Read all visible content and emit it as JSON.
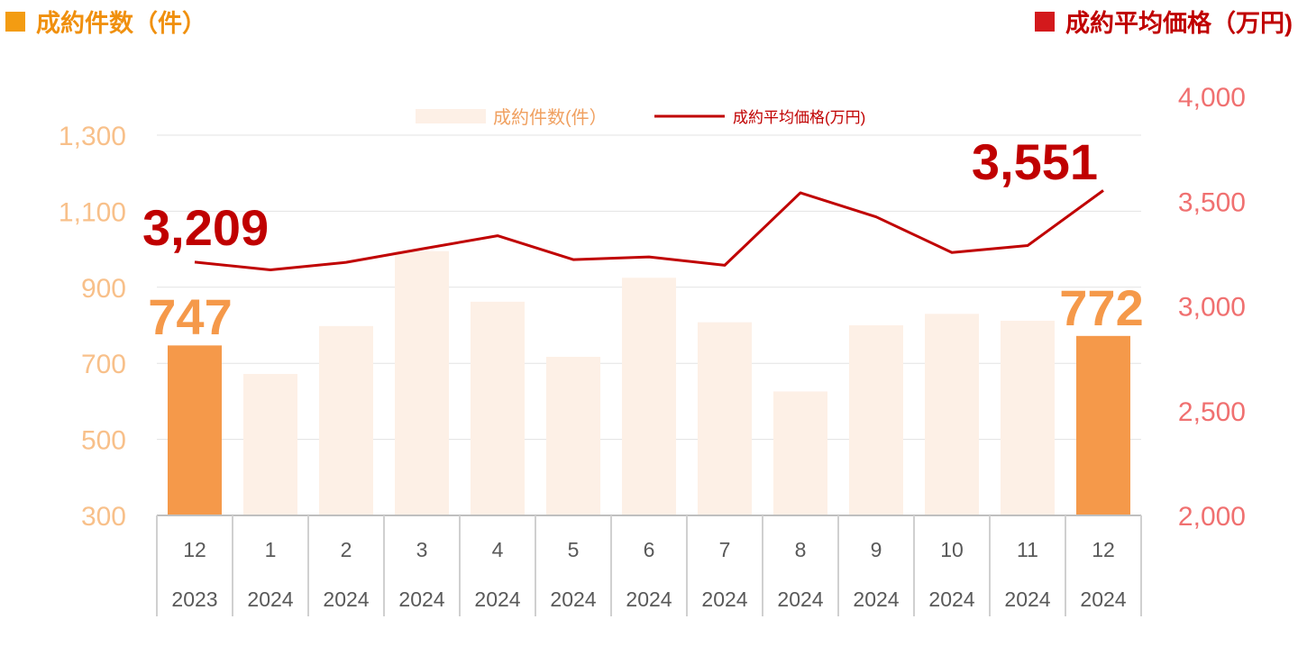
{
  "header": {
    "left_title": "成約件数（件）",
    "right_title": "成約平均価格（万円)"
  },
  "legend": {
    "bars_label": "成約件数(件）",
    "line_label": "成約平均価格(万円)"
  },
  "colors": {
    "bar_light": "#FDF0E6",
    "bar_highlight": "#F5994A",
    "line": "#C00000",
    "left_axis": "#F8C08A",
    "right_axis": "#F07070",
    "left_header": "#F0900E"
  },
  "chart_data": {
    "type": "bar",
    "title": "",
    "categories": [
      "12",
      "1",
      "2",
      "3",
      "4",
      "5",
      "6",
      "7",
      "8",
      "9",
      "10",
      "11",
      "12"
    ],
    "category_years": [
      "2023",
      "2024",
      "2024",
      "2024",
      "2024",
      "2024",
      "2024",
      "2024",
      "2024",
      "2024",
      "2024",
      "2024",
      "2024"
    ],
    "series": [
      {
        "name": "成約件数(件）",
        "type": "bar",
        "axis": "left",
        "values": [
          747,
          672,
          798,
          995,
          862,
          717,
          925,
          808,
          626,
          800,
          830,
          812,
          772
        ],
        "highlight_indices": [
          0,
          12
        ]
      },
      {
        "name": "成約平均価格(万円)",
        "type": "line",
        "axis": "right",
        "values": [
          3209,
          3172,
          3208,
          3272,
          3335,
          3221,
          3234,
          3194,
          3540,
          3425,
          3255,
          3288,
          3551
        ]
      }
    ],
    "y_left": {
      "min": 300,
      "max": 1300,
      "ticks": [
        "300",
        "500",
        "700",
        "900",
        "1,100",
        "1,300"
      ]
    },
    "y_right": {
      "min": 2000,
      "max": 4000,
      "ticks": [
        "2,000",
        "2,500",
        "3,000",
        "3,500",
        "4,000"
      ]
    },
    "data_labels": [
      {
        "series": 0,
        "index": 0,
        "text": "747"
      },
      {
        "series": 0,
        "index": 12,
        "text": "772"
      },
      {
        "series": 1,
        "index": 0,
        "text": "3,209"
      },
      {
        "series": 1,
        "index": 12,
        "text": "3,551"
      }
    ],
    "grid": true,
    "legend_position": "top-center"
  }
}
